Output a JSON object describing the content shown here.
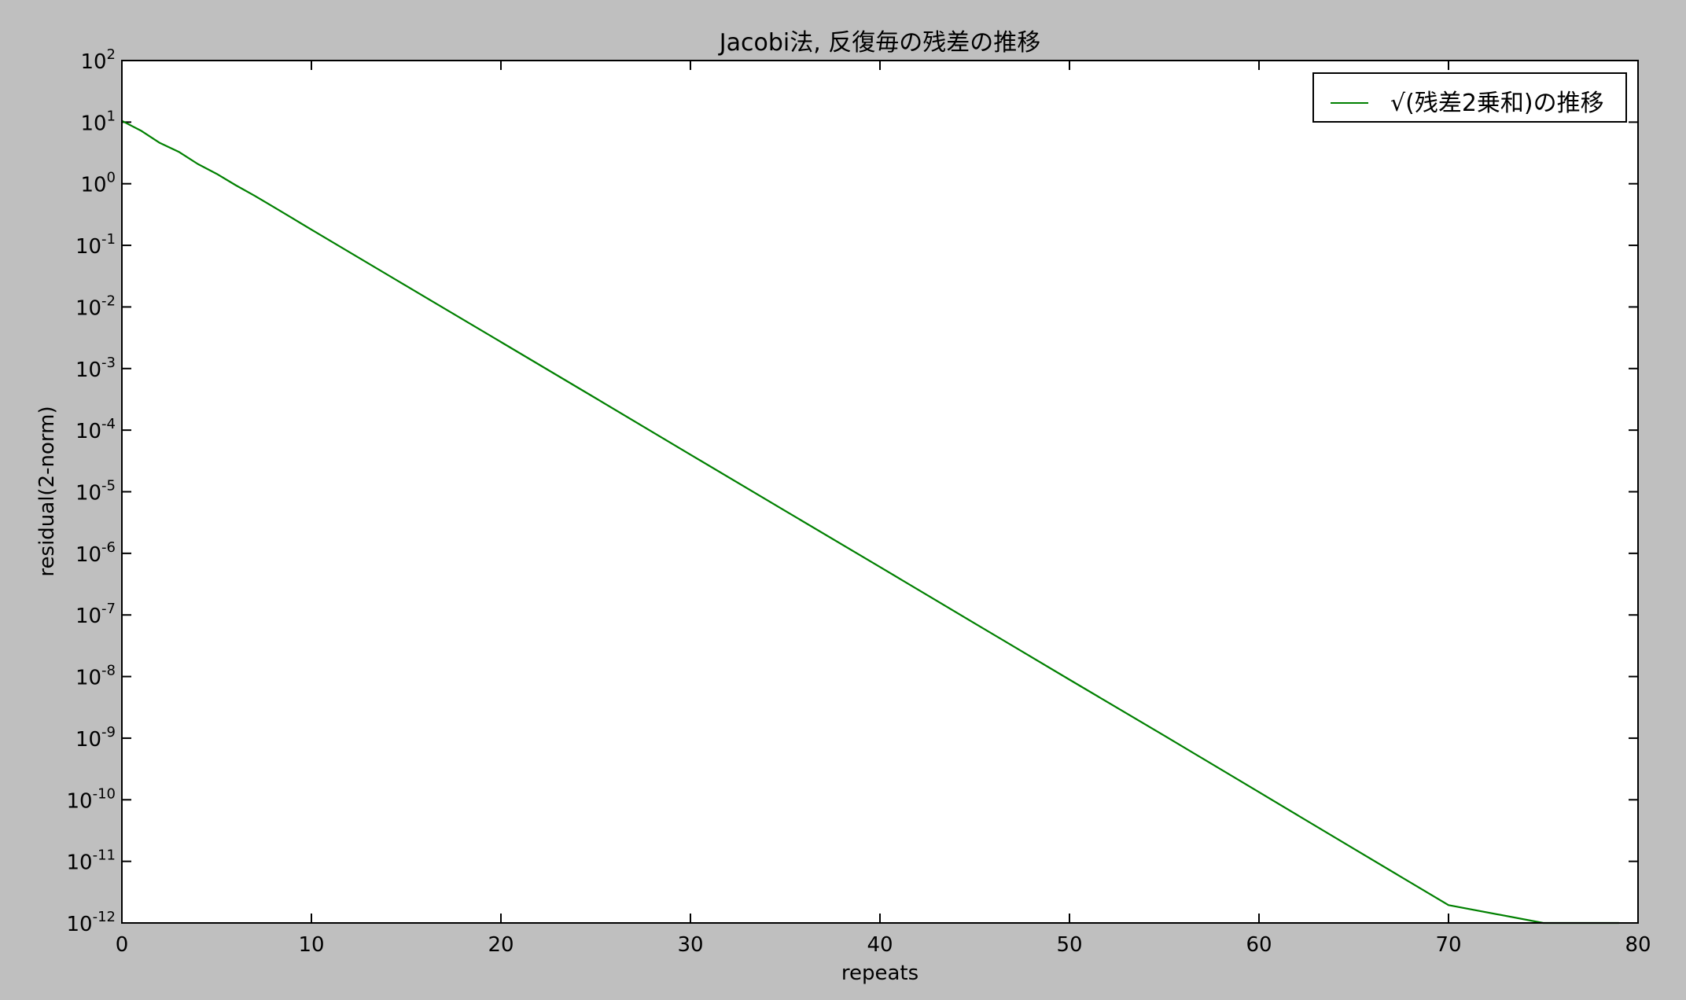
{
  "chart_data": {
    "type": "line",
    "title": "Jacobi法, 反復毎の残差の推移",
    "xlabel": "repeats",
    "ylabel": "residual(2-norm)",
    "xlim": [
      0,
      80
    ],
    "ylim": [
      1e-12,
      100
    ],
    "yscale": "log",
    "grid": false,
    "legend_position": "top-right",
    "x_ticks": [
      0,
      10,
      20,
      30,
      40,
      50,
      60,
      70,
      80
    ],
    "y_tick_exponents": [
      2,
      1,
      0,
      -1,
      -2,
      -3,
      -4,
      -5,
      -6,
      -7,
      -8,
      -9,
      -10,
      -11,
      -12
    ],
    "y_tick_base": "10",
    "series": [
      {
        "name": "√(残差2乗和)の推移",
        "color": "#008000",
        "x": [
          0,
          1,
          2,
          3,
          4,
          5,
          6,
          7,
          8,
          9,
          10,
          15,
          20,
          25,
          30,
          35,
          40,
          45,
          50,
          55,
          60,
          65,
          70,
          75,
          79
        ],
        "y": [
          10.5,
          7.3,
          4.6,
          3.3,
          2.1,
          1.45,
          0.95,
          0.64,
          0.42,
          0.275,
          0.18,
          0.022,
          0.0027,
          0.00033,
          4e-05,
          4.9e-06,
          6e-07,
          7.3e-08,
          8.9e-09,
          1.1e-09,
          1.33e-10,
          1.6e-11,
          1.95e-12,
          2.4e-13,
          1e-12
        ]
      }
    ]
  }
}
